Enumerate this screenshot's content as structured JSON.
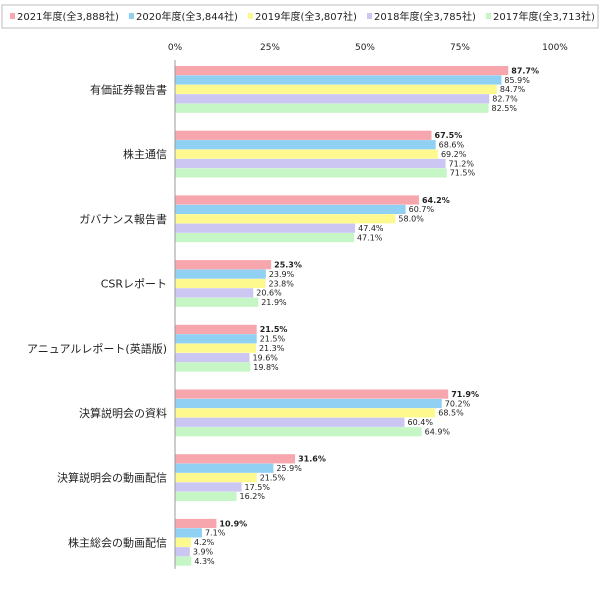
{
  "chart_data": {
    "type": "bar",
    "orientation": "horizontal",
    "xlim": [
      0,
      100
    ],
    "x_ticks": [
      "0%",
      "25%",
      "50%",
      "75%",
      "100%"
    ],
    "grid": false,
    "legend_position": "top",
    "categories": [
      "有価証券報告書",
      "株主通信",
      "ガバナンス報告書",
      "CSRレポート",
      "アニュアルレポート(英語版)",
      "決算説明会の資料",
      "決算説明会の動画配信",
      "株主総会の動画配信"
    ],
    "series": [
      {
        "name": "2021年度(全3,888社)",
        "color": "#f7a6ad",
        "values": [
          87.7,
          67.5,
          64.2,
          25.3,
          21.5,
          71.9,
          31.6,
          10.9
        ],
        "labels": [
          "87.7%",
          "67.5%",
          "64.2%",
          "25.3%",
          "21.5%",
          "71.9%",
          "31.6%",
          "10.9%"
        ]
      },
      {
        "name": "2020年度(全3,844社)",
        "color": "#8fd0f3",
        "values": [
          85.9,
          68.6,
          60.7,
          23.9,
          21.5,
          70.2,
          25.9,
          7.1
        ],
        "labels": [
          "85.9%",
          "68.6%",
          "60.7%",
          "23.9%",
          "21.5%",
          "70.2%",
          "25.9%",
          "7.1%"
        ]
      },
      {
        "name": "2019年度(全3,807社)",
        "color": "#fdf98f",
        "values": [
          84.7,
          69.2,
          58.0,
          23.8,
          21.3,
          68.5,
          21.5,
          4.2
        ],
        "labels": [
          "84.7%",
          "69.2%",
          "58.0%",
          "23.8%",
          "21.3%",
          "68.5%",
          "21.5%",
          "4.2%"
        ]
      },
      {
        "name": "2018年度(全3,785社)",
        "color": "#cbc6f2",
        "values": [
          82.7,
          71.2,
          47.4,
          20.6,
          19.6,
          60.4,
          17.5,
          3.9
        ],
        "labels": [
          "82.7%",
          "71.2%",
          "47.4%",
          "20.6%",
          "19.6%",
          "60.4%",
          "17.5%",
          "3.9%"
        ]
      },
      {
        "name": "2017年度(全3,713社)",
        "color": "#c6f5c6",
        "values": [
          82.5,
          71.5,
          47.1,
          21.9,
          19.8,
          64.9,
          16.2,
          4.3
        ],
        "labels": [
          "82.5%",
          "71.5%",
          "47.1%",
          "21.9%",
          "19.8%",
          "64.9%",
          "16.2%",
          "4.3%"
        ]
      }
    ]
  }
}
